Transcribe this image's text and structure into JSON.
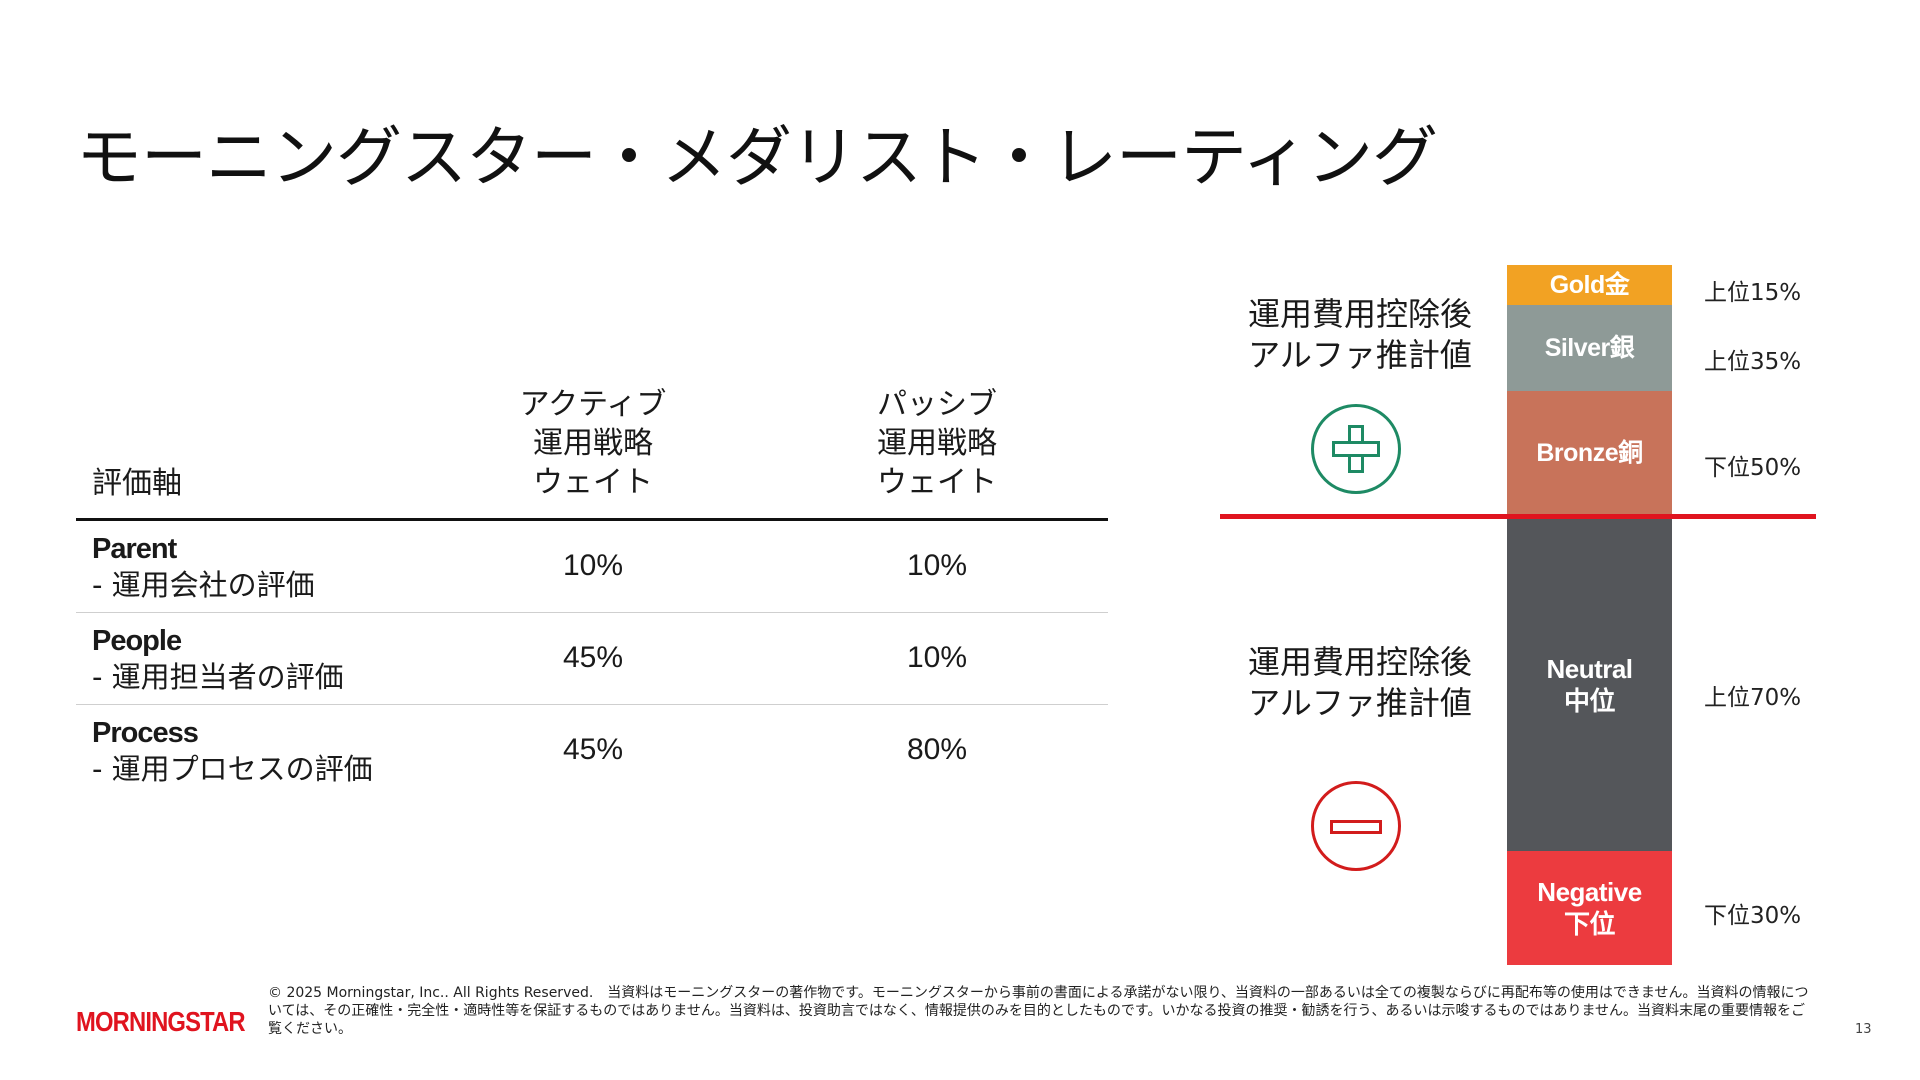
{
  "title": "モーニングスター・メダリスト・レーティング",
  "table": {
    "headers": {
      "axis": "評価軸",
      "active_lines": [
        "アクティブ",
        "運用戦略",
        "ウェイト"
      ],
      "passive_lines": [
        "パッシブ",
        "運用戦略",
        "ウェイト"
      ]
    },
    "rows": [
      {
        "name_en": "Parent",
        "name_jp": "- 運用会社の評価",
        "active": "10%",
        "passive": "10%"
      },
      {
        "name_en": "People",
        "name_jp": "- 運用担当者の評価",
        "active": "45%",
        "passive": "10%"
      },
      {
        "name_en": "Process",
        "name_jp": "- 運用プロセスの評価",
        "active": "45%",
        "passive": "80%"
      }
    ]
  },
  "alpha_labels": {
    "top": [
      "運用費用控除後",
      "アルファ推計値"
    ],
    "bottom": [
      "運用費用控除後",
      "アルファ推計値"
    ]
  },
  "icons": {
    "positive": "plus-circle-icon",
    "negative": "minus-circle-icon"
  },
  "colors": {
    "gold": "#f2a223",
    "silver": "#8e9a97",
    "bronze": "#c8735a",
    "neutral": "#54565a",
    "negative": "#ec3b3f",
    "divider": "#e0141f",
    "positive_icon": "#1e8a64",
    "negative_icon": "#d21c1c"
  },
  "ratings": [
    {
      "key": "gold",
      "label": "Gold金",
      "percent": "上位15%"
    },
    {
      "key": "silver",
      "label": "Silver銀",
      "percent": "上位35%"
    },
    {
      "key": "bronze",
      "label": "Bronze銅",
      "percent": "下位50%"
    },
    {
      "key": "neutral",
      "label_lines": [
        "Neutral",
        "中位"
      ],
      "percent": "上位70%"
    },
    {
      "key": "negative",
      "label_lines": [
        "Negative",
        "下位"
      ],
      "percent": "下位30%"
    }
  ],
  "footer": {
    "logo": "MORNINGSTAR",
    "disclaimer": "© 2025 Morningstar, Inc.. All Rights Reserved.　当資料はモーニングスターの著作物です。モーニングスターから事前の書面による承諾がない限り、当資料の一部あるいは全ての複製ならびに再配布等の使用はできません。当資料の情報については、その正確性・完全性・適時性等を保証するものではありません。当資料は、投資助言ではなく、情報提供のみを目的としたものです。いかなる投資の推奨・勧誘を行う、あるいは示唆するものではありません。当資料末尾の重要情報をご覧ください。",
    "page_number": "13"
  }
}
